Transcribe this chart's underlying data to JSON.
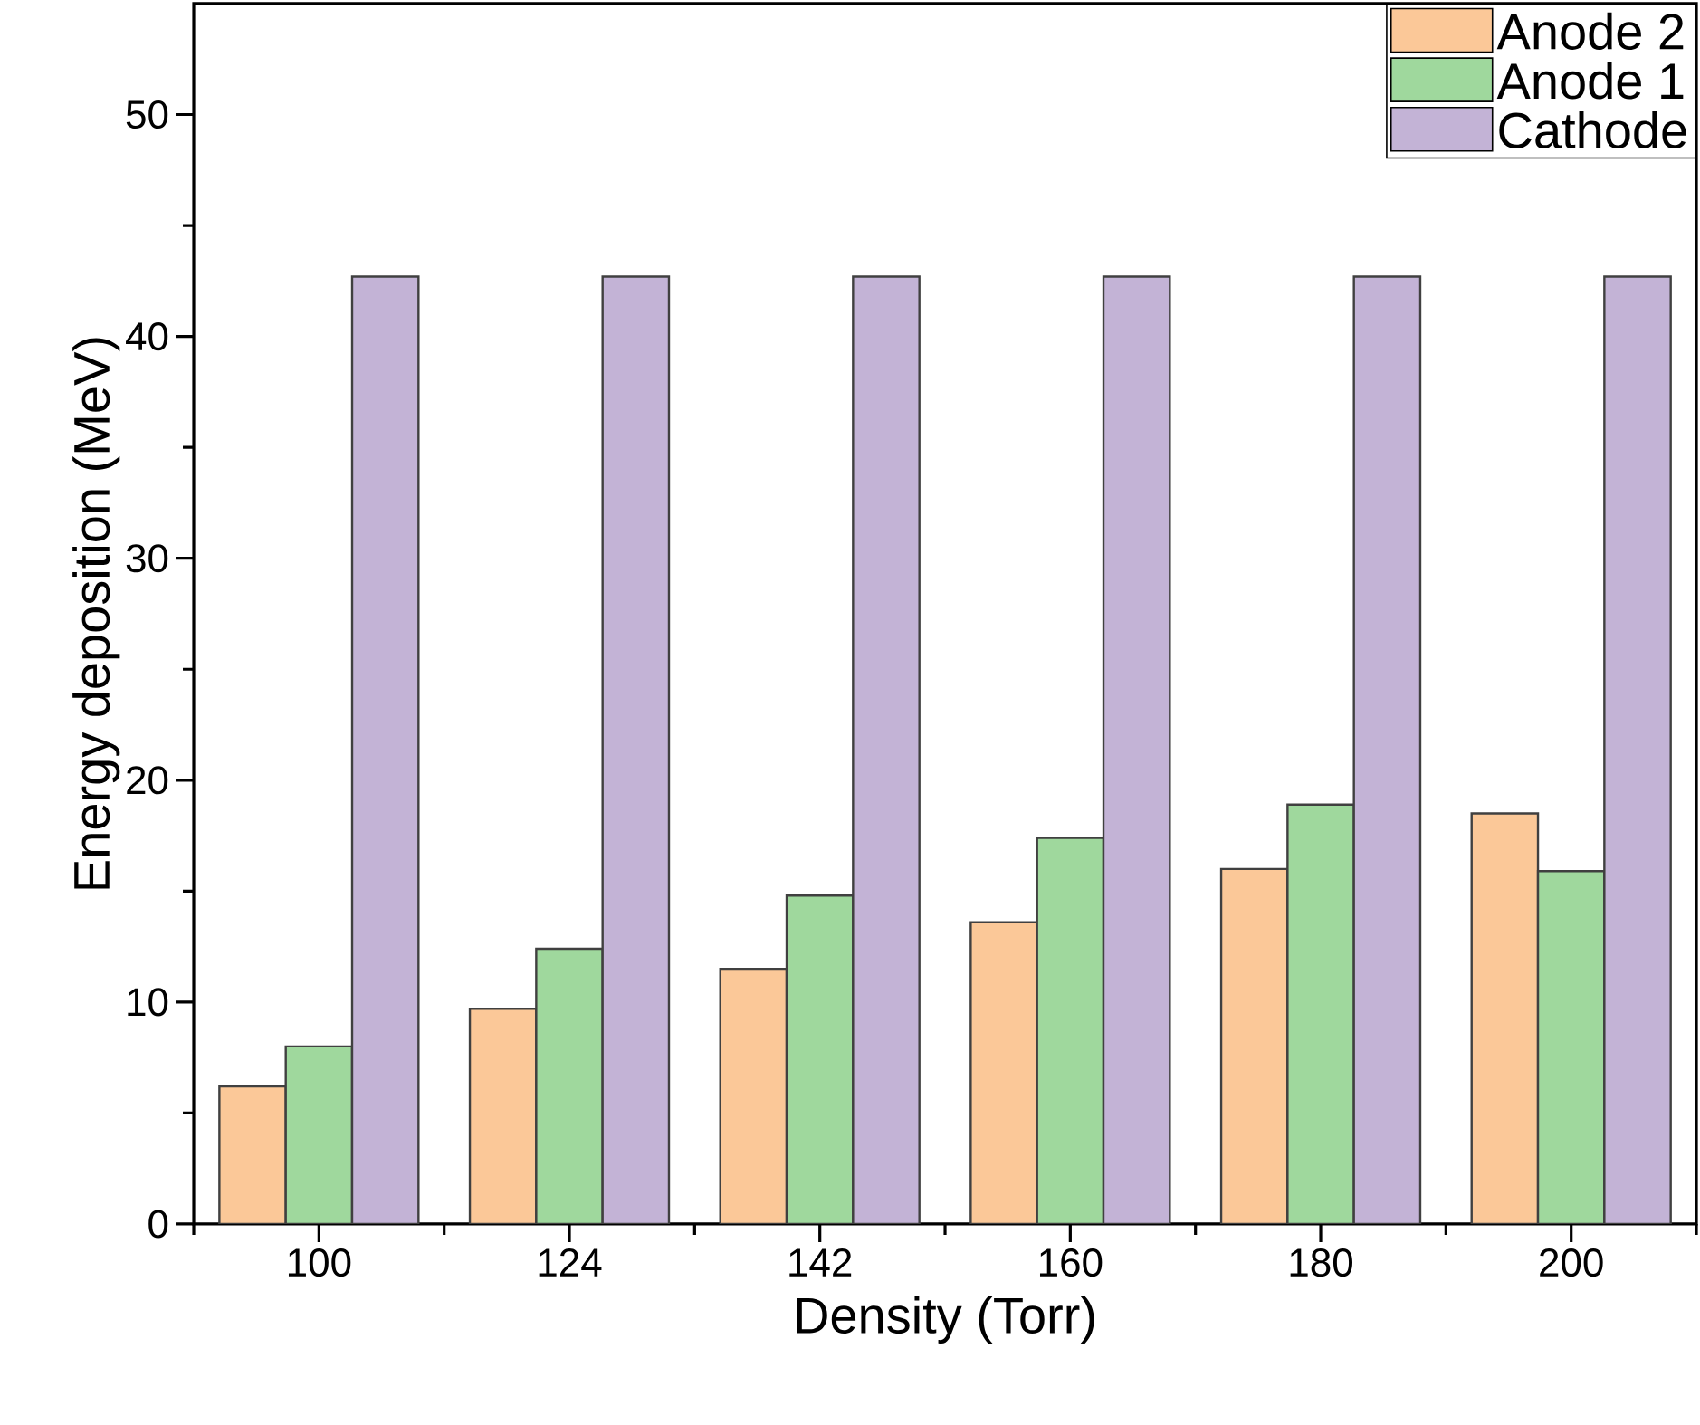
{
  "chart_data": {
    "type": "bar",
    "xlabel": "Density (Torr)",
    "ylabel": "Energy deposition (MeV)",
    "categories": [
      "100",
      "124",
      "142",
      "160",
      "180",
      "200"
    ],
    "series": [
      {
        "name": "Anode 2",
        "color": "#fbc898",
        "values": [
          6.2,
          9.7,
          11.5,
          13.6,
          16.0,
          18.5
        ]
      },
      {
        "name": "Anode 1",
        "color": "#9fd89d",
        "values": [
          8.0,
          12.4,
          14.8,
          17.4,
          18.9,
          15.9
        ]
      },
      {
        "name": "Cathode",
        "color": "#c3b3d6",
        "values": [
          42.7,
          42.7,
          42.7,
          42.7,
          42.7,
          42.7
        ]
      }
    ],
    "ylim": [
      0,
      55
    ],
    "yticks": [
      0,
      10,
      20,
      30,
      40,
      50
    ],
    "legend": "top right",
    "grid": false
  }
}
